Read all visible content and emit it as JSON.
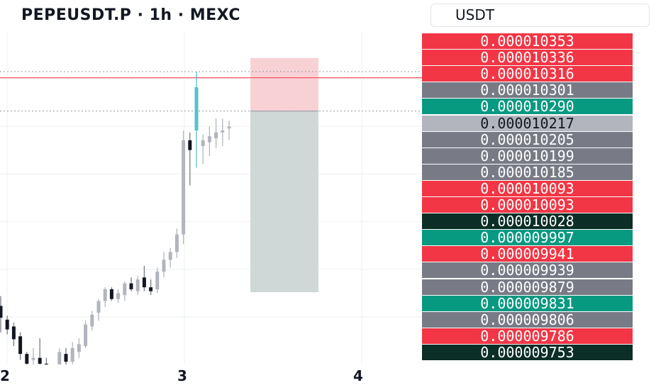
{
  "header": {
    "symbol_title": "PEPEUSDT.P · 1h · MEXC",
    "currency_selector": "USDT"
  },
  "colors": {
    "up": "#089981",
    "down": "#f23645",
    "neutral": "#787b86",
    "current": "#b2b5be",
    "dark": "#0b2e26",
    "candle_up": "#b2b5be",
    "candle_down": "#131722",
    "wick_accent": "#56c2c9",
    "stop_zone": "#f8d1d5",
    "target_zone": "#cfd8d6"
  },
  "price_scale": {
    "labels": [
      {
        "value": "0.000010353",
        "color": "down"
      },
      {
        "value": "0.000010336",
        "color": "down"
      },
      {
        "value": "0.000010316",
        "color": "down"
      },
      {
        "value": "0.000010301",
        "color": "neutral"
      },
      {
        "value": "0.000010290",
        "color": "up"
      },
      {
        "value": "0.000010217",
        "color": "current"
      },
      {
        "value": "0.000010205",
        "color": "neutral"
      },
      {
        "value": "0.000010199",
        "color": "neutral"
      },
      {
        "value": "0.000010185",
        "color": "neutral"
      },
      {
        "value": "0.000010093",
        "color": "down"
      },
      {
        "value": "0.000010093",
        "color": "down"
      },
      {
        "value": "0.000010028",
        "color": "dark"
      },
      {
        "value": "0.000009997",
        "color": "up"
      },
      {
        "value": "0.000009941",
        "color": "down"
      },
      {
        "value": "0.000009939",
        "color": "neutral"
      },
      {
        "value": "0.000009879",
        "color": "neutral"
      },
      {
        "value": "0.000009831",
        "color": "up"
      },
      {
        "value": "0.000009806",
        "color": "neutral"
      },
      {
        "value": "0.000009786",
        "color": "down"
      },
      {
        "value": "0.000009753",
        "color": "dark"
      }
    ]
  },
  "time_axis": {
    "labels": [
      "2",
      "3",
      "4"
    ]
  },
  "chart_data": {
    "type": "candlestick",
    "price_range": [
      9.7e-06,
      1.038e-05
    ],
    "candles": [
      {
        "o": 9.8195e-06,
        "h": 9.8395e-06,
        "l": 9.7655e-06,
        "c": 9.7955e-06
      },
      {
        "o": 9.7915e-06,
        "h": 9.7995e-06,
        "l": 9.7615e-06,
        "c": 9.7715e-06
      },
      {
        "o": 9.7775e-06,
        "h": 9.7855e-06,
        "l": 9.7375e-06,
        "c": 9.7515e-06
      },
      {
        "o": 9.7575e-06,
        "h": 9.7655e-06,
        "l": 9.7095e-06,
        "c": 9.7215e-06
      },
      {
        "o": 9.7215e-06,
        "h": 9.7255e-06,
        "l": 9.6975e-06,
        "c": 9.7015e-06
      },
      {
        "o": 9.7095e-06,
        "h": 9.7335e-06,
        "l": 9.6935e-06,
        "c": 9.7135e-06
      },
      {
        "o": 9.7135e-06,
        "h": 9.7535e-06,
        "l": 9.6975e-06,
        "c": 9.7015e-06
      },
      {
        "o": 9.7015e-06,
        "h": 9.7135e-06,
        "l": 9.6735e-06,
        "c": 9.6895e-06
      },
      {
        "o": 9.6895e-06,
        "h": 9.6975e-06,
        "l": 9.6615e-06,
        "c": 9.6735e-06
      },
      {
        "o": 9.6735e-06,
        "h": 9.7335e-06,
        "l": 9.6655e-06,
        "c": 9.7255e-06
      },
      {
        "o": 9.7215e-06,
        "h": 9.7335e-06,
        "l": 9.6895e-06,
        "c": 9.7055e-06
      },
      {
        "o": 9.7055e-06,
        "h": 9.7455e-06,
        "l": 9.6935e-06,
        "c": 9.7335e-06
      },
      {
        "o": 9.7255e-06,
        "h": 9.7535e-06,
        "l": 9.7135e-06,
        "c": 9.7415e-06
      },
      {
        "o": 9.7375e-06,
        "h": 9.7895e-06,
        "l": 9.7335e-06,
        "c": 9.7815e-06
      },
      {
        "o": 9.7775e-06,
        "h": 9.8095e-06,
        "l": 9.7695e-06,
        "c": 9.8015e-06
      },
      {
        "o": 9.8055e-06,
        "h": 9.8335e-06,
        "l": 9.7895e-06,
        "c": 9.8295e-06
      },
      {
        "o": 9.8295e-06,
        "h": 9.8575e-06,
        "l": 9.8175e-06,
        "c": 9.8535e-06
      },
      {
        "o": 9.8535e-06,
        "h": 9.8575e-06,
        "l": 9.8295e-06,
        "c": 9.8335e-06
      },
      {
        "o": 9.8335e-06,
        "h": 9.8535e-06,
        "l": 9.8255e-06,
        "c": 9.8455e-06
      },
      {
        "o": 9.8415e-06,
        "h": 9.8695e-06,
        "l": 9.8295e-06,
        "c": 9.8655e-06
      },
      {
        "o": 9.8655e-06,
        "h": 9.8775e-06,
        "l": 9.8495e-06,
        "c": 9.8535e-06
      },
      {
        "o": 9.8495e-06,
        "h": 9.8815e-06,
        "l": 9.8415e-06,
        "c": 9.8735e-06
      },
      {
        "o": 9.8775e-06,
        "h": 9.9015e-06,
        "l": 9.8495e-06,
        "c": 9.8575e-06
      },
      {
        "o": 9.8575e-06,
        "h": 9.8735e-06,
        "l": 9.8415e-06,
        "c": 9.8495e-06
      },
      {
        "o": 9.8535e-06,
        "h": 9.8975e-06,
        "l": 9.8455e-06,
        "c": 9.8895e-06
      },
      {
        "o": 9.8895e-06,
        "h": 9.9295e-06,
        "l": 9.8775e-06,
        "c": 9.9135e-06
      },
      {
        "o": 9.9135e-06,
        "h": 9.9375e-06,
        "l": 9.8975e-06,
        "c": 9.9295e-06
      },
      {
        "o": 9.9295e-06,
        "h": 9.9775e-06,
        "l": 9.9175e-06,
        "c": 9.9655e-06
      },
      {
        "o": 9.9655e-06,
        "h": 1.01775e-05,
        "l": 9.9455e-06,
        "c": 1.01575e-05
      },
      {
        "o": 1.01575e-05,
        "h": 1.01735e-05,
        "l": 1.00655e-05,
        "c": 1.01375e-05
      },
      {
        "o": 1.01775e-05,
        "h": 1.02975e-05,
        "l": 1.01015e-05,
        "c": 1.02655e-05
      },
      {
        "o": 1.01455e-05,
        "h": 1.01695e-05,
        "l": 1.01095e-05,
        "c": 1.01575e-05
      },
      {
        "o": 1.01535e-05,
        "h": 1.01855e-05,
        "l": 1.01255e-05,
        "c": 1.01655e-05
      },
      {
        "o": 1.01615e-05,
        "h": 1.02015e-05,
        "l": 1.01415e-05,
        "c": 1.01735e-05
      },
      {
        "o": 1.01735e-05,
        "h": 1.02015e-05,
        "l": 1.01455e-05,
        "c": 1.01775e-05
      },
      {
        "o": 1.01815e-05,
        "h": 1.01975e-05,
        "l": 1.01575e-05,
        "c": 1.01855e-05
      }
    ],
    "accent_candle_index": 30,
    "horizontal_lines": [
      {
        "price": 1.02975e-05,
        "style": "dotted"
      },
      {
        "price": 1.0285e-05,
        "style": "solid-red"
      },
      {
        "price": 1.0217e-05,
        "style": "dotted"
      }
    ],
    "position_tool": {
      "type": "short",
      "stop": 1.03253e-05,
      "entry": 1.0217e-05,
      "target": 9.8475e-06
    },
    "grid": true,
    "time_ticks": [
      "2",
      "3",
      "4"
    ]
  }
}
